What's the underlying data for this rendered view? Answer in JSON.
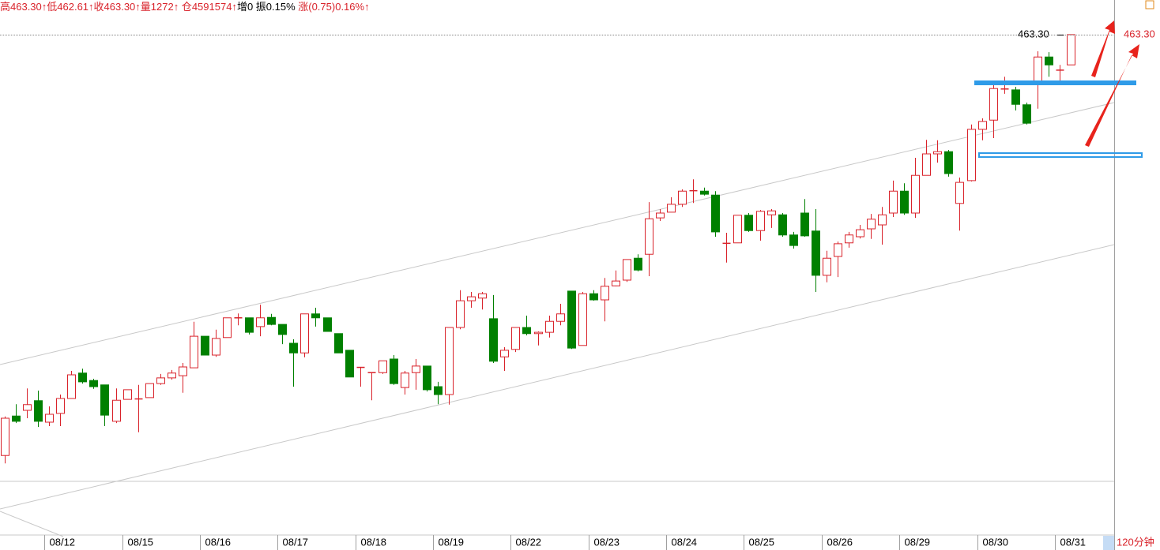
{
  "chart_data": {
    "type": "candlestick",
    "header": [
      {
        "text": "高463.30↑低462.61↑收463.30↑量1272↑ 仓4591574↑",
        "color": "#d9232b"
      },
      {
        "text": "增0 振0.15%",
        "color": "#000000"
      },
      {
        "text": " 涨(0.75)0.16%↑",
        "color": "#d9232b"
      }
    ],
    "timeframe": "120分钟",
    "current_price": {
      "value": 463.3,
      "label": "463.30"
    },
    "up_color": "#d9232b",
    "down_color": "#008000",
    "ylim": [
      451.904,
      464.09
    ],
    "categories": [
      null,
      null,
      null,
      null,
      "08/12",
      null,
      null,
      null,
      null,
      null,
      null,
      "08/15",
      null,
      null,
      null,
      null,
      null,
      null,
      "08/16",
      null,
      null,
      null,
      null,
      null,
      null,
      "08/17",
      null,
      null,
      null,
      null,
      null,
      null,
      "08/18",
      null,
      null,
      null,
      null,
      null,
      null,
      "08/19",
      null,
      null,
      null,
      null,
      null,
      null,
      "08/22",
      null,
      null,
      null,
      null,
      null,
      null,
      "08/23",
      null,
      null,
      null,
      null,
      null,
      null,
      "08/24",
      null,
      null,
      null,
      null,
      null,
      null,
      "08/25",
      null,
      null,
      null,
      null,
      null,
      null,
      "08/26",
      null,
      null,
      null,
      null,
      null,
      null,
      "08/29",
      null,
      null,
      null,
      null,
      null,
      null,
      "08/30",
      null,
      null,
      null,
      null,
      null,
      null,
      "08/31",
      null
    ],
    "open": [
      453.7,
      454.6,
      454.73,
      454.95,
      454.46,
      454.66,
      455.0,
      455.58,
      455.41,
      455.31,
      454.48,
      454.98,
      454.98,
      455.02,
      455.34,
      455.47,
      455.52,
      455.7,
      456.42,
      455.99,
      456.39,
      456.84,
      456.84,
      456.64,
      456.85,
      456.69,
      456.26,
      456.04,
      456.93,
      456.84,
      456.48,
      456.1,
      455.7,
      455.59,
      455.59,
      455.9,
      455.25,
      455.59,
      455.74,
      455.27,
      455.09,
      456.62,
      457.23,
      457.29,
      456.82,
      455.95,
      456.12,
      456.62,
      456.48,
      456.51,
      456.76,
      457.45,
      456.21,
      457.39,
      457.25,
      457.57,
      457.7,
      458.2,
      458.29,
      459.12,
      459.25,
      459.43,
      459.73,
      459.73,
      459.64,
      458.53,
      458.55,
      459.18,
      458.83,
      459.19,
      459.19,
      458.73,
      459.23,
      458.82,
      457.81,
      458.24,
      458.55,
      458.69,
      458.87,
      458.96,
      459.23,
      459.73,
      459.23,
      460.09,
      460.58,
      460.63,
      459.45,
      459.97,
      461.14,
      461.35,
      462.06,
      462.04,
      461.7,
      462.24,
      462.79,
      462.49,
      462.61
    ],
    "high": [
      454.59,
      454.87,
      455.23,
      455.18,
      454.82,
      455.09,
      455.63,
      455.68,
      455.45,
      455.31,
      455.23,
      455.2,
      455.31,
      455.34,
      455.56,
      455.65,
      455.81,
      456.75,
      456.42,
      456.57,
      456.84,
      456.94,
      456.84,
      457.14,
      456.93,
      456.69,
      456.35,
      456.93,
      457.07,
      456.84,
      456.48,
      456.1,
      455.72,
      455.6,
      455.86,
      455.99,
      455.63,
      455.9,
      455.74,
      455.38,
      456.62,
      457.47,
      457.43,
      457.43,
      457.36,
      456.17,
      456.62,
      456.89,
      456.53,
      456.89,
      457.16,
      457.45,
      457.43,
      457.47,
      457.75,
      457.92,
      458.17,
      458.29,
      459.48,
      459.32,
      459.59,
      459.77,
      460.0,
      459.81,
      459.73,
      458.78,
      459.18,
      459.23,
      459.3,
      459.32,
      459.23,
      458.8,
      459.55,
      459.32,
      458.37,
      458.58,
      458.8,
      458.96,
      459.21,
      459.37,
      459.97,
      459.91,
      460.49,
      460.9,
      460.89,
      460.67,
      460.04,
      461.25,
      461.39,
      462.2,
      462.34,
      462.11,
      461.75,
      462.92,
      462.9,
      462.61,
      463.3
    ],
    "low": [
      453.52,
      454.44,
      454.55,
      454.35,
      454.37,
      454.37,
      455.0,
      455.34,
      455.22,
      454.37,
      454.44,
      454.98,
      454.23,
      455.02,
      455.31,
      455.43,
      455.13,
      455.7,
      455.99,
      455.95,
      456.39,
      456.67,
      456.46,
      456.42,
      456.67,
      456.24,
      455.27,
      455.94,
      456.64,
      456.53,
      456.04,
      455.49,
      455.27,
      454.96,
      455.56,
      455.31,
      455.09,
      455.2,
      455.16,
      454.87,
      454.86,
      456.58,
      457.07,
      457.03,
      455.81,
      455.63,
      456.06,
      456.44,
      456.21,
      456.39,
      456.67,
      456.13,
      456.21,
      457.23,
      456.76,
      457.56,
      457.66,
      457.9,
      457.79,
      459.05,
      459.25,
      459.37,
      459.46,
      459.63,
      458.69,
      458.1,
      458.55,
      458.8,
      458.6,
      458.89,
      458.69,
      458.42,
      458.69,
      457.43,
      457.65,
      457.77,
      458.44,
      458.65,
      458.64,
      458.51,
      459.14,
      459.19,
      459.12,
      460.09,
      460.38,
      460.06,
      458.83,
      459.95,
      460.89,
      460.94,
      461.95,
      461.57,
      461.25,
      461.61,
      462.34,
      462.25,
      462.61
    ],
    "close": [
      454.55,
      454.48,
      454.86,
      454.48,
      454.64,
      455.0,
      455.54,
      455.38,
      455.27,
      454.62,
      454.96,
      455.2,
      454.99,
      455.34,
      455.47,
      455.58,
      455.72,
      456.42,
      455.99,
      456.37,
      456.84,
      456.84,
      456.51,
      456.84,
      456.69,
      456.46,
      456.04,
      456.93,
      456.84,
      456.53,
      456.04,
      455.49,
      455.71,
      455.59,
      455.86,
      455.34,
      455.58,
      455.74,
      455.2,
      455.09,
      456.62,
      457.23,
      457.32,
      457.39,
      455.85,
      456.1,
      456.62,
      456.48,
      456.51,
      456.76,
      456.93,
      456.15,
      457.39,
      457.25,
      457.56,
      457.68,
      458.17,
      457.93,
      459.1,
      459.23,
      459.43,
      459.73,
      459.74,
      459.66,
      458.8,
      458.54,
      459.18,
      458.83,
      459.27,
      459.28,
      458.73,
      458.49,
      458.71,
      457.81,
      458.2,
      458.53,
      458.73,
      458.85,
      459.09,
      459.19,
      459.73,
      459.23,
      460.09,
      460.58,
      460.63,
      460.13,
      459.93,
      461.14,
      461.32,
      462.07,
      462.06,
      461.71,
      461.28,
      462.79,
      462.61,
      462.49,
      463.3
    ]
  }
}
